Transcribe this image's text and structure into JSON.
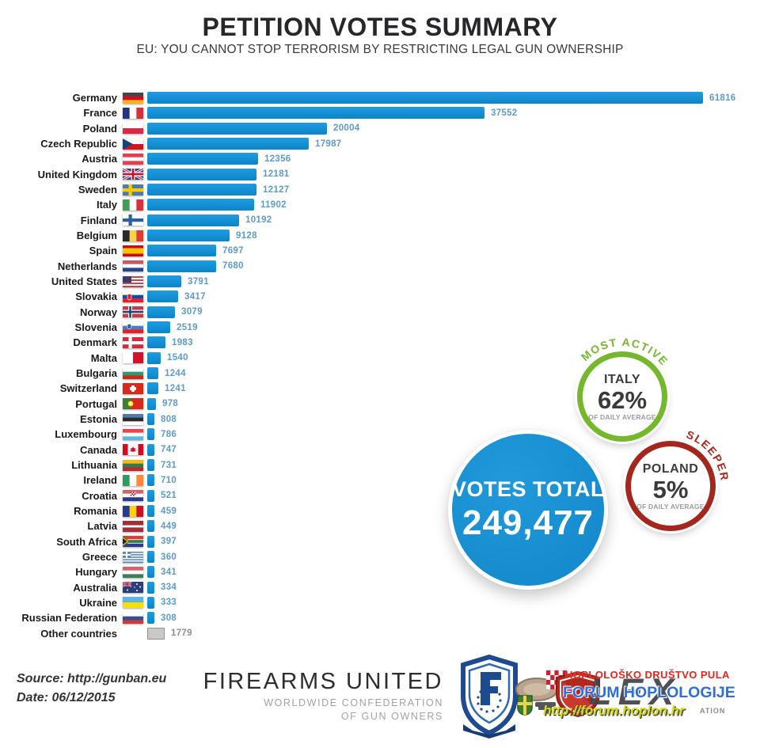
{
  "page": {
    "title": "PETITION VOTES SUMMARY",
    "subtitle": "EU: YOU CANNOT STOP TERRORISM BY RESTRICTING LEGAL GUN OWNERSHIP"
  },
  "chart_data": {
    "type": "bar",
    "orientation": "horizontal",
    "title": "PETITION VOTES SUMMARY",
    "subtitle": "EU: YOU CANNOT STOP TERRORISM BY RESTRICTING LEGAL GUN OWNERSHIP",
    "x_max": 61816,
    "bar_color": "#118ed6",
    "other_bar_color": "#c9c9c9",
    "value_label_color": "#5e9bc8",
    "rows": [
      {
        "label": "Germany",
        "value": 61816,
        "flag": "de"
      },
      {
        "label": "France",
        "value": 37552,
        "flag": "fr"
      },
      {
        "label": "Poland",
        "value": 20004,
        "flag": "pl"
      },
      {
        "label": "Czech Republic",
        "value": 17987,
        "flag": "cz"
      },
      {
        "label": "Austria",
        "value": 12356,
        "flag": "at"
      },
      {
        "label": "United Kingdom",
        "value": 12181,
        "flag": "uk"
      },
      {
        "label": "Sweden",
        "value": 12127,
        "flag": "se"
      },
      {
        "label": "Italy",
        "value": 11902,
        "flag": "it"
      },
      {
        "label": "Finland",
        "value": 10192,
        "flag": "fi"
      },
      {
        "label": "Belgium",
        "value": 9128,
        "flag": "be"
      },
      {
        "label": "Spain",
        "value": 7697,
        "flag": "es"
      },
      {
        "label": "Netherlands",
        "value": 7680,
        "flag": "nl"
      },
      {
        "label": "United States",
        "value": 3791,
        "flag": "us"
      },
      {
        "label": "Slovakia",
        "value": 3417,
        "flag": "sk"
      },
      {
        "label": "Norway",
        "value": 3079,
        "flag": "no"
      },
      {
        "label": "Slovenia",
        "value": 2519,
        "flag": "si"
      },
      {
        "label": "Denmark",
        "value": 1983,
        "flag": "dk"
      },
      {
        "label": "Malta",
        "value": 1540,
        "flag": "mt"
      },
      {
        "label": "Bulgaria",
        "value": 1244,
        "flag": "bg"
      },
      {
        "label": "Switzerland",
        "value": 1241,
        "flag": "ch"
      },
      {
        "label": "Portugal",
        "value": 978,
        "flag": "pt"
      },
      {
        "label": "Estonia",
        "value": 808,
        "flag": "ee"
      },
      {
        "label": "Luxembourg",
        "value": 786,
        "flag": "lu"
      },
      {
        "label": "Canada",
        "value": 747,
        "flag": "ca"
      },
      {
        "label": "Lithuania",
        "value": 731,
        "flag": "lt"
      },
      {
        "label": "Ireland",
        "value": 710,
        "flag": "ie"
      },
      {
        "label": "Croatia",
        "value": 521,
        "flag": "hr"
      },
      {
        "label": "Romania",
        "value": 459,
        "flag": "ro"
      },
      {
        "label": "Latvia",
        "value": 449,
        "flag": "lv"
      },
      {
        "label": "South Africa",
        "value": 397,
        "flag": "za"
      },
      {
        "label": "Greece",
        "value": 360,
        "flag": "gr"
      },
      {
        "label": "Hungary",
        "value": 341,
        "flag": "hu"
      },
      {
        "label": "Australia",
        "value": 334,
        "flag": "au"
      },
      {
        "label": "Ukraine",
        "value": 333,
        "flag": "ua"
      },
      {
        "label": "Russian Federation",
        "value": 308,
        "flag": "ru"
      },
      {
        "label": "Other countries",
        "value": 1779,
        "flag": "none",
        "other": true
      }
    ]
  },
  "flags": {
    "de": {
      "t": "h",
      "c": [
        "#454545",
        "#D00C27",
        "#F6B40E"
      ]
    },
    "fr": {
      "t": "v",
      "c": [
        "#23337F",
        "#FFFFFF",
        "#D6303B"
      ]
    },
    "pl": {
      "t": "h",
      "c": [
        "#FFFFFF",
        "#DC2642"
      ]
    },
    "cz": {
      "t": "cz"
    },
    "at": {
      "t": "h",
      "c": [
        "#E04050",
        "#FFFFFF",
        "#E04050"
      ]
    },
    "uk": {
      "t": "uk"
    },
    "se": {
      "t": "cross",
      "bg": "#4A7CB0",
      "cr": "#FECB00"
    },
    "it": {
      "t": "v",
      "c": [
        "#3FA055",
        "#FFFFFF",
        "#D6303B"
      ]
    },
    "fi": {
      "t": "cross",
      "bg": "#FFFFFF",
      "cr": "#2E5EA1"
    },
    "be": {
      "t": "v",
      "c": [
        "#2B2B2B",
        "#F3D44C",
        "#E03C31"
      ]
    },
    "es": {
      "t": "h",
      "c": [
        "#C60B1E",
        "#FFC400",
        "#C60B1E"
      ],
      "w": [
        1,
        2,
        1
      ]
    },
    "nl": {
      "t": "h",
      "c": [
        "#C55A62",
        "#FFFFFF",
        "#25468B"
      ]
    },
    "us": {
      "t": "us"
    },
    "sk": {
      "t": "sk"
    },
    "no": {
      "t": "no"
    },
    "si": {
      "t": "si"
    },
    "dk": {
      "t": "cross",
      "bg": "#D12B3F",
      "cr": "#FFFFFF"
    },
    "mt": {
      "t": "mt"
    },
    "bg": {
      "t": "h",
      "c": [
        "#FFFFFF",
        "#2E9B74",
        "#D62612"
      ]
    },
    "ch": {
      "t": "ch"
    },
    "pt": {
      "t": "pt"
    },
    "ee": {
      "t": "h",
      "c": [
        "#4A7CB0",
        "#2B2B2B",
        "#FFFFFF"
      ]
    },
    "lu": {
      "t": "h",
      "c": [
        "#EF4050",
        "#FFFFFF",
        "#5EB6E4"
      ]
    },
    "ca": {
      "t": "ca"
    },
    "lt": {
      "t": "h",
      "c": [
        "#FDB913",
        "#2E7C54",
        "#C1272D"
      ]
    },
    "ie": {
      "t": "v",
      "c": [
        "#2E9B62",
        "#FFFFFF",
        "#FF883E"
      ]
    },
    "hr": {
      "t": "hr"
    },
    "ro": {
      "t": "v",
      "c": [
        "#2A3B8F",
        "#F7D417",
        "#CE1126"
      ]
    },
    "lv": {
      "t": "h",
      "c": [
        "#9E3039",
        "#FFFFFF",
        "#9E3039"
      ],
      "w": [
        2,
        1,
        2
      ]
    },
    "za": {
      "t": "za"
    },
    "gr": {
      "t": "gr"
    },
    "hu": {
      "t": "h",
      "c": [
        "#D6626A",
        "#FFFFFF",
        "#3E7C5B"
      ]
    },
    "au": {
      "t": "au"
    },
    "ua": {
      "t": "h",
      "c": [
        "#5FB4E4",
        "#F8E100"
      ]
    },
    "ru": {
      "t": "h",
      "c": [
        "#FFFFFF",
        "#31518F",
        "#CE3737"
      ]
    }
  },
  "badges": {
    "total": {
      "label": "VOTES TOTAL",
      "value": "249,477",
      "color": "#1b92d4"
    },
    "most_active": {
      "ribbon": "MOST ACTIVE",
      "country": "ITALY",
      "percent": "62%",
      "caption": "OF DAILY AVERAGE",
      "color": "#76b82d"
    },
    "sleeper": {
      "ribbon": "SLEEPER",
      "country": "POLAND",
      "percent": "5%",
      "caption": "OF DAILY AVERAGE",
      "color": "#a3271c"
    }
  },
  "footer": {
    "source": "Source: http://gunban.eu",
    "date": "Date: 06/12/2015",
    "org": "FIREARMS UNITED",
    "org_sub1": "WORLDWIDE CONFEDERATION",
    "org_sub2": "OF GUN OWNERS",
    "lex": "LEX",
    "lex_small": "ATION",
    "watermark_line1": "HOPLOLOŠKO DRUŠTVO PULA",
    "watermark_line2": "FORUM HOPLOLOGIJE",
    "watermark_url": "http://forum.hoplon.hr"
  }
}
